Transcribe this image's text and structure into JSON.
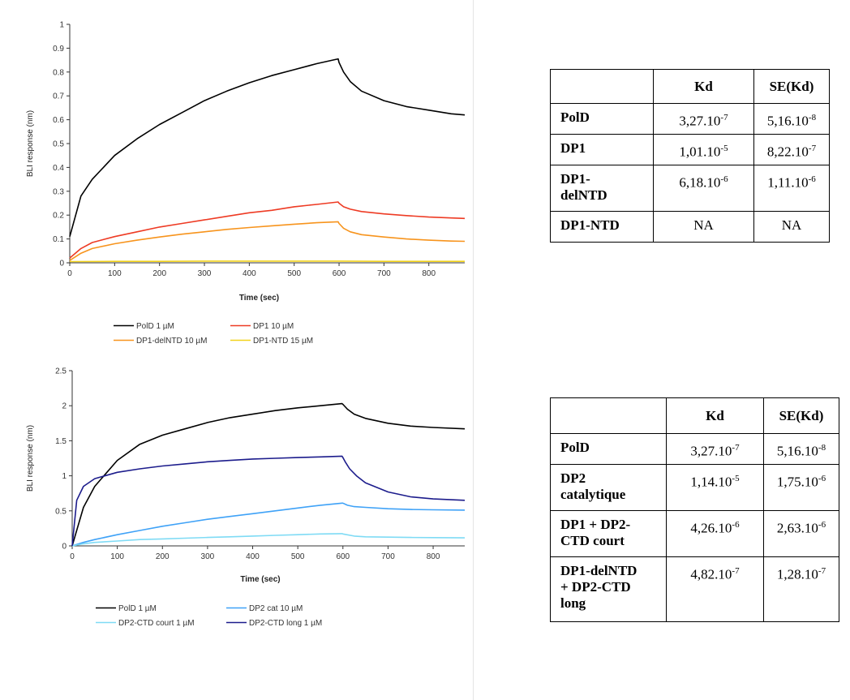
{
  "chart_data": [
    {
      "type": "line",
      "xlabel": "Time (sec)",
      "ylabel": "BLI response (nm)",
      "xlim": [
        0,
        880
      ],
      "ylim": [
        0,
        1
      ],
      "xticks": [
        0,
        100,
        200,
        300,
        400,
        500,
        600,
        700,
        800
      ],
      "yticks": [
        0,
        0.1,
        0.2,
        0.3,
        0.4,
        0.5,
        0.6,
        0.7,
        0.8,
        0.9,
        1
      ],
      "ytick_labels": [
        "0",
        "0.1",
        "0.2",
        "0.3",
        "0.4",
        "0.5",
        "0.6",
        "0.7",
        "0.8",
        "0.9",
        "1"
      ],
      "grid": false,
      "legend": "bottom",
      "series": [
        {
          "name": "PolD 1 µM",
          "color": "#000000",
          "x": [
            0,
            25,
            50,
            100,
            150,
            200,
            250,
            300,
            350,
            400,
            450,
            500,
            550,
            598,
            600,
            610,
            625,
            650,
            700,
            750,
            800,
            850,
            880
          ],
          "y": [
            0.11,
            0.28,
            0.35,
            0.45,
            0.52,
            0.58,
            0.63,
            0.68,
            0.72,
            0.755,
            0.785,
            0.81,
            0.835,
            0.855,
            0.84,
            0.8,
            0.76,
            0.72,
            0.68,
            0.655,
            0.64,
            0.625,
            0.62
          ]
        },
        {
          "name": "DP1 10 µM",
          "color": "#ee3b24",
          "x": [
            0,
            25,
            50,
            100,
            150,
            200,
            250,
            300,
            350,
            400,
            450,
            500,
            550,
            598,
            600,
            610,
            625,
            650,
            700,
            750,
            800,
            850,
            880
          ],
          "y": [
            0.02,
            0.06,
            0.085,
            0.11,
            0.13,
            0.15,
            0.165,
            0.18,
            0.195,
            0.21,
            0.22,
            0.235,
            0.245,
            0.255,
            0.25,
            0.235,
            0.225,
            0.215,
            0.205,
            0.198,
            0.192,
            0.188,
            0.186
          ]
        },
        {
          "name": "DP1-delNTD 10 µM",
          "color": "#f7941d",
          "x": [
            0,
            25,
            50,
            100,
            150,
            200,
            250,
            300,
            350,
            400,
            450,
            500,
            550,
            598,
            600,
            610,
            625,
            650,
            700,
            750,
            800,
            850,
            880
          ],
          "y": [
            0.01,
            0.04,
            0.06,
            0.08,
            0.095,
            0.108,
            0.12,
            0.13,
            0.14,
            0.148,
            0.155,
            0.162,
            0.168,
            0.172,
            0.165,
            0.145,
            0.13,
            0.118,
            0.108,
            0.1,
            0.095,
            0.091,
            0.09
          ]
        },
        {
          "name": "DP1-NTD 15 µM",
          "color": "#f2d21b",
          "x": [
            0,
            100,
            200,
            300,
            400,
            500,
            600,
            700,
            800,
            880
          ],
          "y": [
            0.005,
            0.006,
            0.006,
            0.007,
            0.007,
            0.007,
            0.007,
            0.006,
            0.006,
            0.006
          ]
        }
      ]
    },
    {
      "type": "line",
      "xlabel": "Time (sec)",
      "ylabel": "BLI response (nm)",
      "xlim": [
        0,
        870
      ],
      "ylim": [
        0,
        2.5
      ],
      "xticks": [
        0,
        100,
        200,
        300,
        400,
        500,
        600,
        700,
        800
      ],
      "yticks": [
        0,
        0.5,
        1,
        1.5,
        2,
        2.5
      ],
      "ytick_labels": [
        "0",
        "0.5",
        "1",
        "1.5",
        "2",
        "2.5"
      ],
      "grid": false,
      "legend": "bottom",
      "series": [
        {
          "name": "PolD 1 µM",
          "color": "#000000",
          "x": [
            0,
            25,
            50,
            100,
            150,
            200,
            250,
            300,
            350,
            400,
            450,
            500,
            550,
            598,
            600,
            610,
            625,
            650,
            700,
            750,
            800,
            870
          ],
          "y": [
            0,
            0.55,
            0.85,
            1.22,
            1.45,
            1.58,
            1.67,
            1.76,
            1.83,
            1.88,
            1.93,
            1.97,
            2.0,
            2.03,
            2.02,
            1.95,
            1.88,
            1.82,
            1.75,
            1.71,
            1.69,
            1.67
          ]
        },
        {
          "name": "DP2 cat 10 µM",
          "color": "#3fa2f7",
          "x": [
            0,
            25,
            50,
            100,
            150,
            200,
            250,
            300,
            350,
            400,
            450,
            500,
            550,
            598,
            600,
            610,
            625,
            650,
            700,
            750,
            800,
            870
          ],
          "y": [
            0,
            0.05,
            0.09,
            0.16,
            0.22,
            0.28,
            0.33,
            0.38,
            0.42,
            0.46,
            0.5,
            0.54,
            0.58,
            0.61,
            0.61,
            0.58,
            0.56,
            0.55,
            0.53,
            0.52,
            0.515,
            0.51
          ]
        },
        {
          "name": "DP2-CTD court 1 µM",
          "color": "#7fdbf5",
          "x": [
            0,
            25,
            50,
            100,
            150,
            200,
            250,
            300,
            350,
            400,
            450,
            500,
            550,
            598,
            600,
            625,
            650,
            700,
            750,
            800,
            870
          ],
          "y": [
            0,
            0.03,
            0.05,
            0.07,
            0.09,
            0.1,
            0.11,
            0.12,
            0.13,
            0.14,
            0.15,
            0.16,
            0.17,
            0.175,
            0.17,
            0.14,
            0.13,
            0.125,
            0.12,
            0.118,
            0.115
          ]
        },
        {
          "name": "DP2-CTD long 1 µM",
          "color": "#1c1c8c",
          "x": [
            0,
            10,
            25,
            50,
            100,
            150,
            200,
            250,
            300,
            350,
            400,
            450,
            500,
            550,
            598,
            600,
            605,
            615,
            630,
            650,
            700,
            750,
            800,
            870
          ],
          "y": [
            0,
            0.65,
            0.85,
            0.96,
            1.05,
            1.1,
            1.14,
            1.17,
            1.2,
            1.22,
            1.24,
            1.25,
            1.26,
            1.27,
            1.28,
            1.26,
            1.2,
            1.1,
            1.0,
            0.9,
            0.77,
            0.7,
            0.67,
            0.65
          ]
        }
      ]
    }
  ],
  "tables": [
    {
      "header": [
        "",
        "Kd",
        "SE(Kd)"
      ],
      "rows": [
        {
          "label": [
            "PolD"
          ],
          "kd": {
            "m": "3,27.10",
            "e": "-7"
          },
          "se": {
            "m": "5,16.10",
            "e": "-8"
          }
        },
        {
          "label": [
            "DP1"
          ],
          "kd": {
            "m": "1,01.10",
            "e": "-5"
          },
          "se": {
            "m": "8,22.10",
            "e": "-7"
          }
        },
        {
          "label": [
            "DP1-",
            "delNTD"
          ],
          "kd": {
            "m": "6,18.10",
            "e": "-6"
          },
          "se": {
            "m": "1,11.10",
            "e": "-6"
          }
        },
        {
          "label": [
            "DP1-NTD"
          ],
          "kd": {
            "m": "NA",
            "e": ""
          },
          "se": {
            "m": "NA",
            "e": ""
          }
        }
      ]
    },
    {
      "header": [
        "",
        "Kd",
        "SE(Kd)"
      ],
      "rows": [
        {
          "label": [
            "PolD"
          ],
          "kd": {
            "m": "3,27.10",
            "e": "-7"
          },
          "se": {
            "m": "5,16.10",
            "e": "-8"
          }
        },
        {
          "label": [
            "DP2",
            "catalytique"
          ],
          "kd": {
            "m": "1,14.10",
            "e": "-5"
          },
          "se": {
            "m": "1,75.10",
            "e": "-6"
          }
        },
        {
          "label": [
            "DP1 + DP2-",
            "CTD court"
          ],
          "kd": {
            "m": "4,26.10",
            "e": "-6"
          },
          "se": {
            "m": "2,63.10",
            "e": "-6"
          }
        },
        {
          "label": [
            "DP1-delNTD",
            "+ DP2-CTD",
            "long"
          ],
          "kd": {
            "m": "4,82.10",
            "e": "-7"
          },
          "se": {
            "m": "1,28.10",
            "e": "-7"
          }
        }
      ]
    }
  ]
}
